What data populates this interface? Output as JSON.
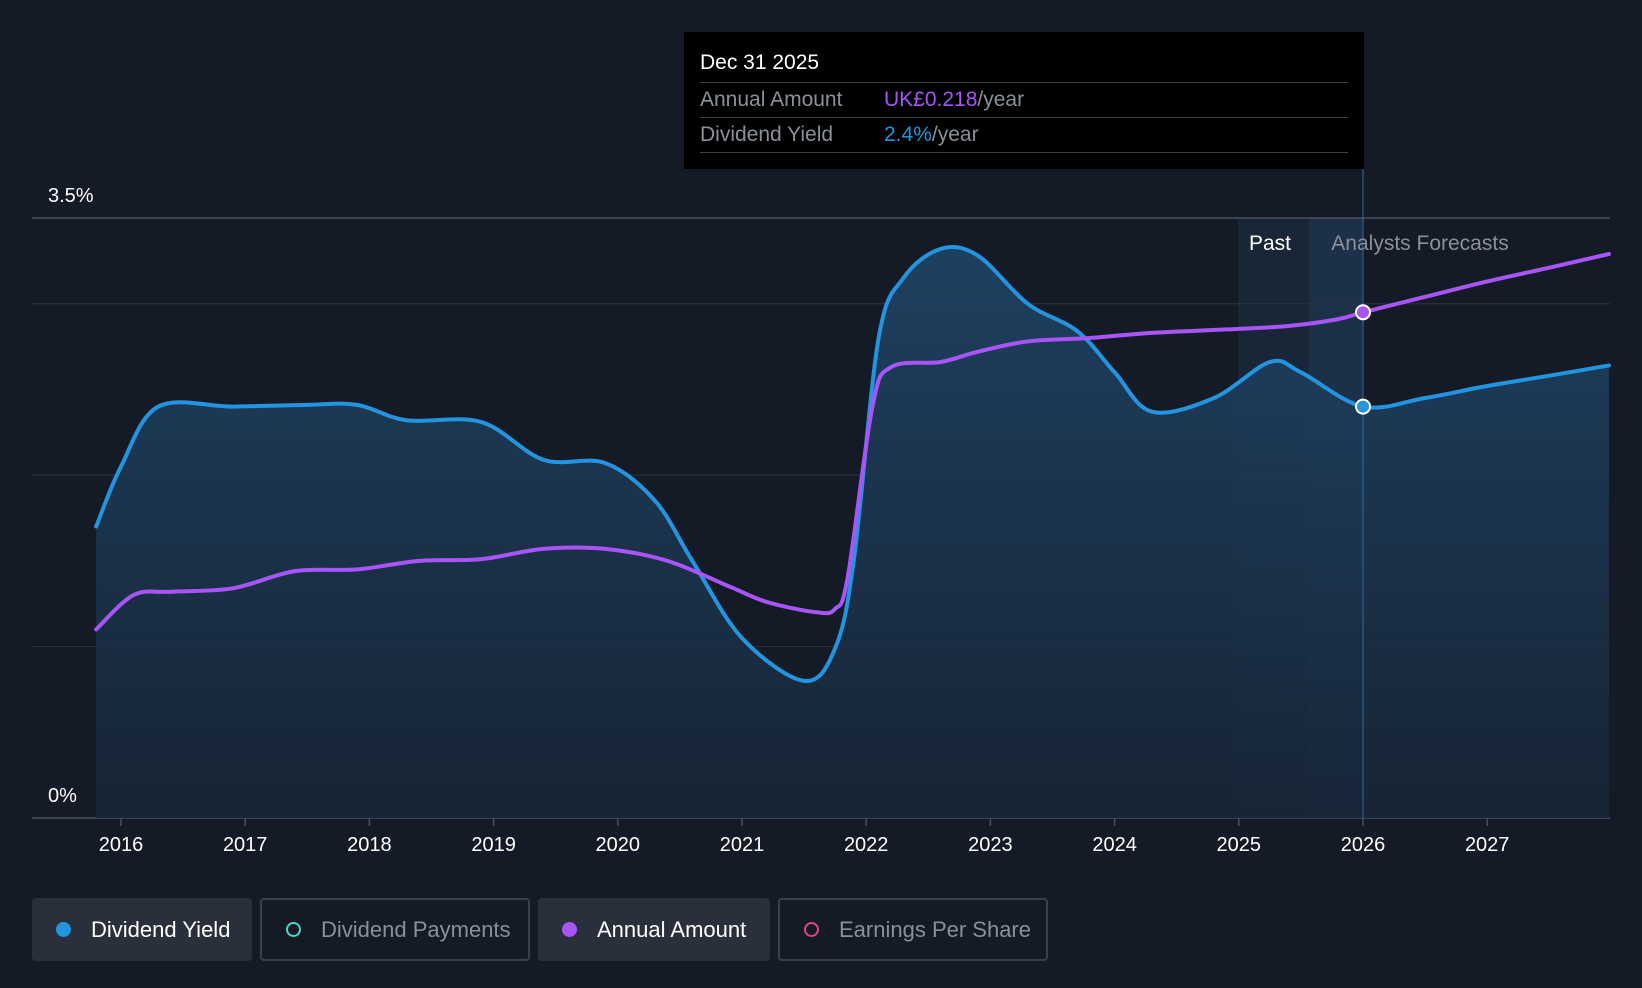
{
  "tooltip": {
    "date": "Dec 31 2025",
    "rows": [
      {
        "label": "Annual Amount",
        "value": "UK£0.218",
        "unit": "/year",
        "color": "#a855f7"
      },
      {
        "label": "Dividend Yield",
        "value": "2.4%",
        "unit": "/year",
        "color": "#2394df"
      }
    ]
  },
  "legend": [
    {
      "label": "Dividend Yield",
      "color": "#2394df",
      "active": true,
      "filled": true
    },
    {
      "label": "Dividend Payments",
      "color": "#4fd1c5",
      "active": false,
      "filled": false
    },
    {
      "label": "Annual Amount",
      "color": "#a855f7",
      "active": true,
      "filled": true
    },
    {
      "label": "Earnings Per Share",
      "color": "#e0467c",
      "active": false,
      "filled": false
    }
  ],
  "chart_data": {
    "type": "line",
    "ylim": [
      0,
      3.5
    ],
    "y_tick_labels": [
      "3.5%",
      "0%"
    ],
    "x_tick_labels": [
      "2016",
      "2017",
      "2018",
      "2019",
      "2020",
      "2021",
      "2022",
      "2023",
      "2024",
      "2025",
      "2026",
      "2027"
    ],
    "region_labels": {
      "past": "Past",
      "forecast": "Analysts Forecasts"
    },
    "highlight_x": 2026.0,
    "series": [
      {
        "name": "Dividend Yield",
        "color": "#2394df",
        "area": true,
        "points": [
          [
            2015.8,
            1.7
          ],
          [
            2016.0,
            2.05
          ],
          [
            2016.3,
            2.4
          ],
          [
            2016.9,
            2.4
          ],
          [
            2017.5,
            2.41
          ],
          [
            2017.9,
            2.41
          ],
          [
            2018.3,
            2.32
          ],
          [
            2018.9,
            2.31
          ],
          [
            2019.4,
            2.09
          ],
          [
            2019.9,
            2.07
          ],
          [
            2020.3,
            1.85
          ],
          [
            2020.6,
            1.5
          ],
          [
            2021.0,
            1.05
          ],
          [
            2021.5,
            0.8
          ],
          [
            2021.75,
            0.99
          ],
          [
            2021.9,
            1.5
          ],
          [
            2022.1,
            2.8
          ],
          [
            2022.3,
            3.15
          ],
          [
            2022.6,
            3.32
          ],
          [
            2022.9,
            3.28
          ],
          [
            2023.3,
            3.0
          ],
          [
            2023.7,
            2.84
          ],
          [
            2024.0,
            2.6
          ],
          [
            2024.3,
            2.37
          ],
          [
            2024.8,
            2.45
          ],
          [
            2025.25,
            2.66
          ],
          [
            2025.5,
            2.6
          ],
          [
            2026.0,
            2.4
          ],
          [
            2026.5,
            2.45
          ],
          [
            2027.0,
            2.52
          ],
          [
            2027.5,
            2.58
          ],
          [
            2027.98,
            2.64
          ]
        ]
      },
      {
        "name": "Annual Amount",
        "color": "#a855f7",
        "area": false,
        "points": [
          [
            2015.8,
            1.1
          ],
          [
            2016.1,
            1.3
          ],
          [
            2016.4,
            1.32
          ],
          [
            2016.9,
            1.34
          ],
          [
            2017.4,
            1.44
          ],
          [
            2017.9,
            1.45
          ],
          [
            2018.4,
            1.5
          ],
          [
            2018.9,
            1.51
          ],
          [
            2019.4,
            1.57
          ],
          [
            2019.9,
            1.57
          ],
          [
            2020.4,
            1.5
          ],
          [
            2020.9,
            1.35
          ],
          [
            2021.2,
            1.26
          ],
          [
            2021.6,
            1.2
          ],
          [
            2021.75,
            1.22
          ],
          [
            2021.85,
            1.4
          ],
          [
            2022.05,
            2.4
          ],
          [
            2022.2,
            2.63
          ],
          [
            2022.6,
            2.66
          ],
          [
            2022.9,
            2.72
          ],
          [
            2023.3,
            2.78
          ],
          [
            2023.8,
            2.8
          ],
          [
            2024.3,
            2.83
          ],
          [
            2024.9,
            2.85
          ],
          [
            2025.4,
            2.87
          ],
          [
            2025.8,
            2.91
          ],
          [
            2026.0,
            2.95
          ],
          [
            2026.5,
            3.04
          ],
          [
            2027.0,
            3.13
          ],
          [
            2027.5,
            3.21
          ],
          [
            2027.98,
            3.29
          ]
        ]
      }
    ]
  }
}
